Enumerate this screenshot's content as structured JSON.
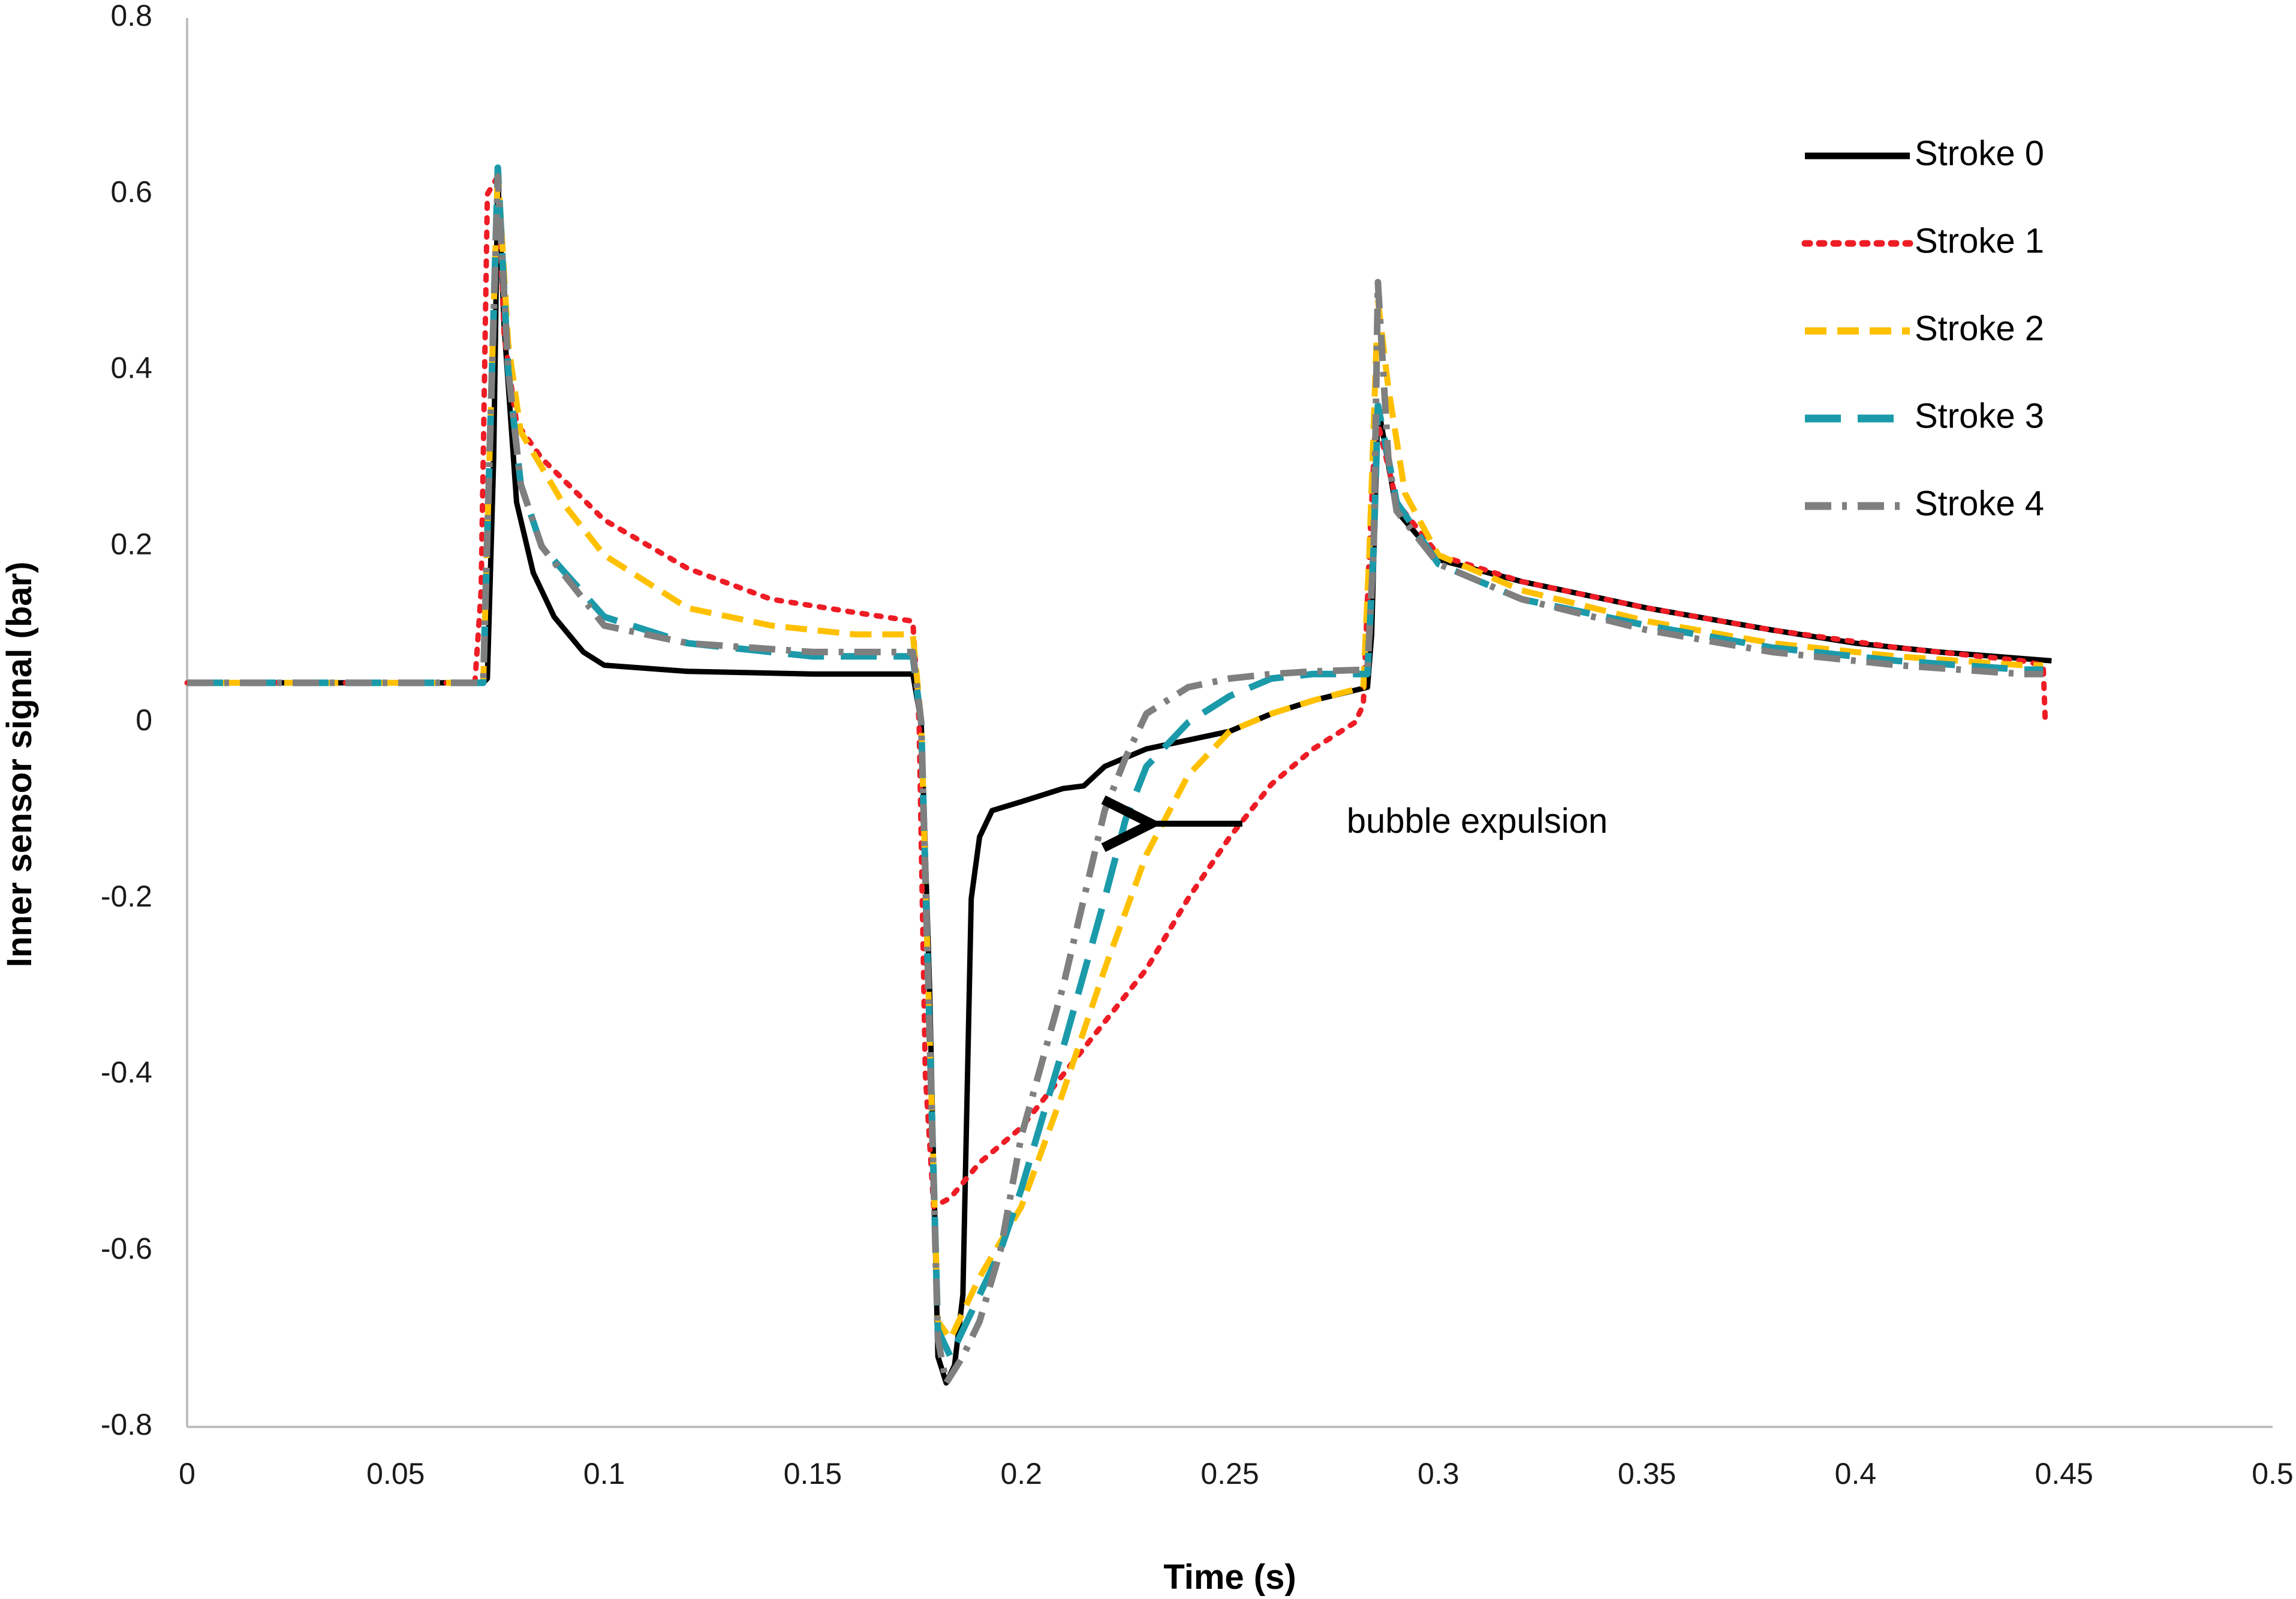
{
  "chart_data": {
    "type": "line",
    "title": "",
    "xlabel": "Time (s)",
    "ylabel": "Inner sensor signal (bar)",
    "xlim": [
      0,
      0.5
    ],
    "ylim": [
      -0.8,
      0.8
    ],
    "xticks": [
      0,
      0.05,
      0.1,
      0.15,
      0.2,
      0.25,
      0.3,
      0.35,
      0.4,
      0.45,
      0.5
    ],
    "yticks": [
      -0.8,
      -0.6,
      -0.4,
      -0.2,
      0,
      0.2,
      0.4,
      0.6,
      0.8
    ],
    "xtick_labels": [
      "0",
      "0.05",
      "0.1",
      "0.15",
      "0.2",
      "0.25",
      "0.3",
      "0.35",
      "0.4",
      "0.45",
      "0.5"
    ],
    "ytick_labels": [
      "-0.8",
      "-0.6",
      "-0.4",
      "-0.2",
      "0",
      "0.2",
      "0.4",
      "0.6",
      "0.8"
    ],
    "grid": false,
    "legend_position": "top-right",
    "series": [
      {
        "name": "Stroke 0",
        "color": "#000000",
        "style": "solid",
        "points": [
          [
            0,
            0.045
          ],
          [
            0.071,
            0.045
          ],
          [
            0.072,
            0.05
          ],
          [
            0.0735,
            0.3
          ],
          [
            0.0745,
            0.62
          ],
          [
            0.076,
            0.45
          ],
          [
            0.079,
            0.25
          ],
          [
            0.083,
            0.17
          ],
          [
            0.088,
            0.12
          ],
          [
            0.095,
            0.08
          ],
          [
            0.1,
            0.065
          ],
          [
            0.12,
            0.058
          ],
          [
            0.15,
            0.055
          ],
          [
            0.174,
            0.055
          ],
          [
            0.176,
            0.0
          ],
          [
            0.178,
            -0.3
          ],
          [
            0.18,
            -0.72
          ],
          [
            0.182,
            -0.75
          ],
          [
            0.184,
            -0.73
          ],
          [
            0.186,
            -0.65
          ],
          [
            0.188,
            -0.2
          ],
          [
            0.19,
            -0.13
          ],
          [
            0.193,
            -0.1
          ],
          [
            0.2,
            -0.09
          ],
          [
            0.21,
            -0.075
          ],
          [
            0.215,
            -0.072
          ],
          [
            0.22,
            -0.05
          ],
          [
            0.23,
            -0.03
          ],
          [
            0.25,
            -0.01
          ],
          [
            0.26,
            0.01
          ],
          [
            0.27,
            0.025
          ],
          [
            0.283,
            0.04
          ],
          [
            0.284,
            0.1
          ],
          [
            0.2855,
            0.36
          ],
          [
            0.287,
            0.32
          ],
          [
            0.29,
            0.24
          ],
          [
            0.3,
            0.185
          ],
          [
            0.32,
            0.16
          ],
          [
            0.35,
            0.13
          ],
          [
            0.38,
            0.105
          ],
          [
            0.4,
            0.09
          ],
          [
            0.42,
            0.08
          ],
          [
            0.447,
            0.07
          ]
        ]
      },
      {
        "name": "Stroke 1",
        "color": "#ee1c25",
        "style": "dotted",
        "points": [
          [
            0,
            0.045
          ],
          [
            0.069,
            0.045
          ],
          [
            0.0705,
            0.15
          ],
          [
            0.072,
            0.6
          ],
          [
            0.0745,
            0.62
          ],
          [
            0.076,
            0.44
          ],
          [
            0.079,
            0.34
          ],
          [
            0.085,
            0.3
          ],
          [
            0.1,
            0.23
          ],
          [
            0.12,
            0.175
          ],
          [
            0.14,
            0.14
          ],
          [
            0.16,
            0.125
          ],
          [
            0.174,
            0.115
          ],
          [
            0.1755,
            0.0
          ],
          [
            0.177,
            -0.4
          ],
          [
            0.179,
            -0.55
          ],
          [
            0.183,
            -0.54
          ],
          [
            0.19,
            -0.5
          ],
          [
            0.2,
            -0.46
          ],
          [
            0.21,
            -0.4
          ],
          [
            0.22,
            -0.34
          ],
          [
            0.23,
            -0.28
          ],
          [
            0.24,
            -0.2
          ],
          [
            0.25,
            -0.13
          ],
          [
            0.26,
            -0.07
          ],
          [
            0.27,
            -0.03
          ],
          [
            0.28,
            0.0
          ],
          [
            0.282,
            0.02
          ],
          [
            0.2835,
            0.2
          ],
          [
            0.285,
            0.35
          ],
          [
            0.29,
            0.25
          ],
          [
            0.3,
            0.19
          ],
          [
            0.32,
            0.16
          ],
          [
            0.35,
            0.13
          ],
          [
            0.38,
            0.105
          ],
          [
            0.41,
            0.085
          ],
          [
            0.44,
            0.07
          ],
          [
            0.445,
            0.065
          ],
          [
            0.4455,
            0.0
          ]
        ]
      },
      {
        "name": "Stroke 2",
        "color": "#ffc000",
        "style": "dashed",
        "points": [
          [
            0,
            0.045
          ],
          [
            0.071,
            0.045
          ],
          [
            0.0725,
            0.3
          ],
          [
            0.0745,
            0.63
          ],
          [
            0.077,
            0.43
          ],
          [
            0.08,
            0.33
          ],
          [
            0.09,
            0.25
          ],
          [
            0.1,
            0.19
          ],
          [
            0.12,
            0.13
          ],
          [
            0.14,
            0.11
          ],
          [
            0.16,
            0.1
          ],
          [
            0.174,
            0.1
          ],
          [
            0.176,
            0.0
          ],
          [
            0.178,
            -0.35
          ],
          [
            0.18,
            -0.68
          ],
          [
            0.183,
            -0.7
          ],
          [
            0.19,
            -0.63
          ],
          [
            0.2,
            -0.55
          ],
          [
            0.21,
            -0.42
          ],
          [
            0.22,
            -0.28
          ],
          [
            0.23,
            -0.15
          ],
          [
            0.24,
            -0.06
          ],
          [
            0.25,
            -0.01
          ],
          [
            0.26,
            0.01
          ],
          [
            0.27,
            0.025
          ],
          [
            0.282,
            0.04
          ],
          [
            0.2835,
            0.2
          ],
          [
            0.2855,
            0.48
          ],
          [
            0.288,
            0.38
          ],
          [
            0.292,
            0.26
          ],
          [
            0.3,
            0.19
          ],
          [
            0.32,
            0.15
          ],
          [
            0.35,
            0.115
          ],
          [
            0.38,
            0.09
          ],
          [
            0.41,
            0.075
          ],
          [
            0.44,
            0.065
          ],
          [
            0.445,
            0.065
          ]
        ]
      },
      {
        "name": "Stroke 3",
        "color": "#1b9aaa",
        "style": "longdash",
        "points": [
          [
            0,
            0.045
          ],
          [
            0.071,
            0.045
          ],
          [
            0.0725,
            0.3
          ],
          [
            0.0745,
            0.63
          ],
          [
            0.077,
            0.4
          ],
          [
            0.08,
            0.27
          ],
          [
            0.085,
            0.2
          ],
          [
            0.1,
            0.12
          ],
          [
            0.12,
            0.09
          ],
          [
            0.15,
            0.075
          ],
          [
            0.174,
            0.075
          ],
          [
            0.176,
            0.0
          ],
          [
            0.178,
            -0.35
          ],
          [
            0.18,
            -0.69
          ],
          [
            0.183,
            -0.72
          ],
          [
            0.187,
            -0.68
          ],
          [
            0.195,
            -0.6
          ],
          [
            0.2,
            -0.53
          ],
          [
            0.21,
            -0.37
          ],
          [
            0.22,
            -0.2
          ],
          [
            0.225,
            -0.11
          ],
          [
            0.23,
            -0.05
          ],
          [
            0.24,
            0.0
          ],
          [
            0.25,
            0.03
          ],
          [
            0.26,
            0.05
          ],
          [
            0.27,
            0.055
          ],
          [
            0.283,
            0.055
          ],
          [
            0.2845,
            0.2
          ],
          [
            0.2855,
            0.36
          ],
          [
            0.288,
            0.3
          ],
          [
            0.29,
            0.25
          ],
          [
            0.3,
            0.18
          ],
          [
            0.32,
            0.14
          ],
          [
            0.35,
            0.11
          ],
          [
            0.38,
            0.085
          ],
          [
            0.41,
            0.07
          ],
          [
            0.44,
            0.06
          ],
          [
            0.445,
            0.06
          ]
        ]
      },
      {
        "name": "Stroke 4",
        "color": "#7f7f7f",
        "style": "dashdot",
        "points": [
          [
            0,
            0.045
          ],
          [
            0.071,
            0.045
          ],
          [
            0.0725,
            0.3
          ],
          [
            0.0745,
            0.62
          ],
          [
            0.077,
            0.4
          ],
          [
            0.08,
            0.27
          ],
          [
            0.085,
            0.2
          ],
          [
            0.1,
            0.11
          ],
          [
            0.12,
            0.09
          ],
          [
            0.15,
            0.08
          ],
          [
            0.174,
            0.08
          ],
          [
            0.176,
            0.0
          ],
          [
            0.178,
            -0.35
          ],
          [
            0.18,
            -0.7
          ],
          [
            0.182,
            -0.75
          ],
          [
            0.186,
            -0.72
          ],
          [
            0.19,
            -0.68
          ],
          [
            0.195,
            -0.6
          ],
          [
            0.2,
            -0.47
          ],
          [
            0.21,
            -0.3
          ],
          [
            0.215,
            -0.2
          ],
          [
            0.22,
            -0.1
          ],
          [
            0.225,
            -0.04
          ],
          [
            0.23,
            0.01
          ],
          [
            0.24,
            0.04
          ],
          [
            0.25,
            0.05
          ],
          [
            0.26,
            0.055
          ],
          [
            0.27,
            0.058
          ],
          [
            0.283,
            0.06
          ],
          [
            0.2845,
            0.2
          ],
          [
            0.2855,
            0.5
          ],
          [
            0.288,
            0.3
          ],
          [
            0.29,
            0.24
          ],
          [
            0.3,
            0.18
          ],
          [
            0.32,
            0.14
          ],
          [
            0.35,
            0.105
          ],
          [
            0.38,
            0.08
          ],
          [
            0.41,
            0.065
          ],
          [
            0.44,
            0.055
          ],
          [
            0.445,
            0.055
          ]
        ]
      }
    ],
    "annotations": [
      {
        "text": "bubble expulsion",
        "arrow_to": [
          0.224,
          -0.115
        ],
        "arrow_from": [
          0.253,
          -0.115
        ],
        "text_at": [
          0.278,
          -0.115
        ]
      }
    ]
  }
}
